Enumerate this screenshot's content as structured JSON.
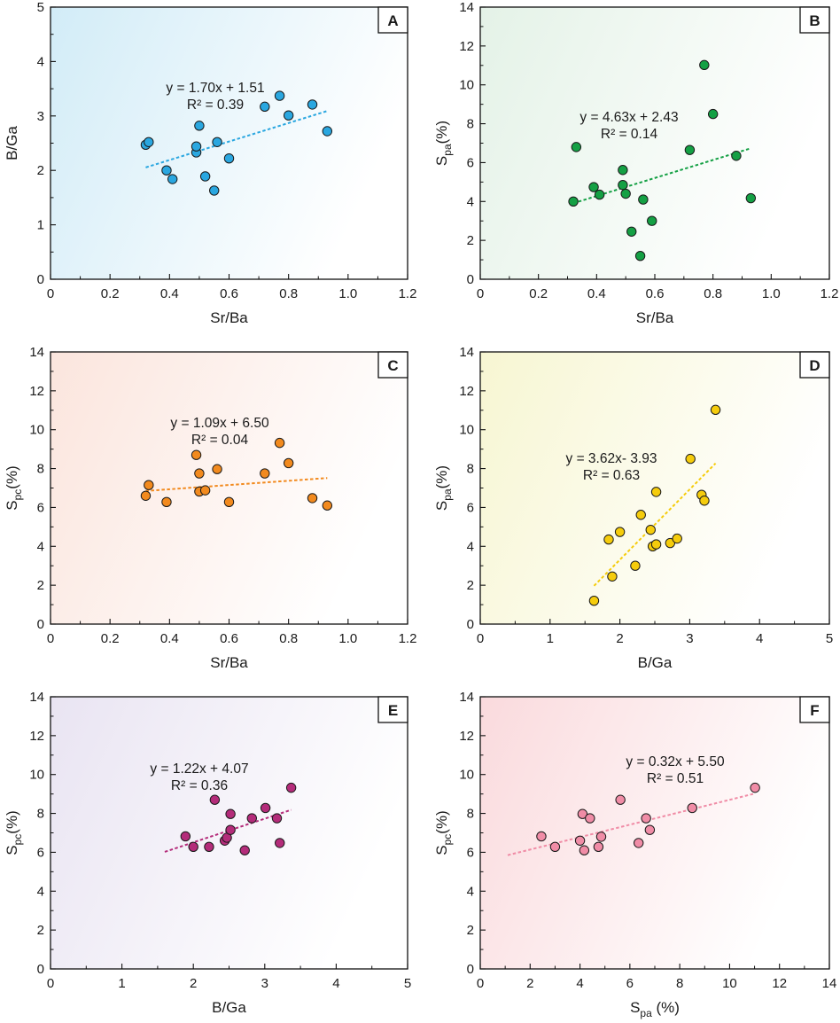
{
  "chart_data": [
    {
      "id": "A",
      "type": "scatter",
      "letter": "A",
      "xlabel": "Sr/Ba",
      "ylabel": "B/Ga",
      "xlim": [
        0,
        1.2
      ],
      "ylim": [
        0,
        5
      ],
      "xticks": [
        "0",
        "0.2",
        "0.4",
        "0.6",
        "0.8",
        "1.0",
        "1.2"
      ],
      "yticks": [
        "0",
        "1",
        "2",
        "3",
        "4",
        "5"
      ],
      "color": "#2aa7e0",
      "bg": "#d2ecf7",
      "equation": "y = 1.70x + 1.51",
      "r2": "R² = 0.39",
      "fit": {
        "x1": 0.32,
        "x2": 0.93,
        "slope": 1.7,
        "intercept": 1.51
      },
      "points": [
        [
          0.32,
          2.47
        ],
        [
          0.33,
          2.52
        ],
        [
          0.39,
          2.0
        ],
        [
          0.41,
          1.84
        ],
        [
          0.49,
          2.33
        ],
        [
          0.49,
          2.44
        ],
        [
          0.5,
          2.82
        ],
        [
          0.52,
          1.89
        ],
        [
          0.55,
          1.63
        ],
        [
          0.56,
          2.52
        ],
        [
          0.6,
          2.22
        ],
        [
          0.72,
          3.17
        ],
        [
          0.77,
          3.37
        ],
        [
          0.8,
          3.01
        ],
        [
          0.88,
          3.21
        ],
        [
          0.93,
          2.72
        ]
      ]
    },
    {
      "id": "B",
      "type": "scatter",
      "letter": "B",
      "xlabel": "Sr/Ba",
      "ylabel_main": "S",
      "ylabel_sub": "pa",
      "ylabel_unit": "(%)",
      "xlim": [
        0,
        1.2
      ],
      "ylim": [
        0,
        14
      ],
      "xticks": [
        "0",
        "0.2",
        "0.4",
        "0.6",
        "0.8",
        "1.0",
        "1.2"
      ],
      "yticks": [
        "0",
        "2",
        "4",
        "6",
        "8",
        "10",
        "12",
        "14"
      ],
      "color": "#14a044",
      "bg": "#e4f2e7",
      "equation": "y = 4.63x + 2.43",
      "r2": "R² = 0.14",
      "fit": {
        "x1": 0.32,
        "x2": 0.93,
        "slope": 4.63,
        "intercept": 2.43
      },
      "points": [
        [
          0.32,
          4.0
        ],
        [
          0.33,
          6.8
        ],
        [
          0.39,
          4.74
        ],
        [
          0.41,
          4.35
        ],
        [
          0.49,
          5.62
        ],
        [
          0.49,
          4.85
        ],
        [
          0.5,
          4.4
        ],
        [
          0.52,
          2.45
        ],
        [
          0.55,
          1.2
        ],
        [
          0.56,
          4.1
        ],
        [
          0.59,
          3.0
        ],
        [
          0.72,
          6.65
        ],
        [
          0.77,
          11.02
        ],
        [
          0.8,
          8.5
        ],
        [
          0.88,
          6.35
        ],
        [
          0.93,
          4.17
        ]
      ]
    },
    {
      "id": "C",
      "type": "scatter",
      "letter": "C",
      "xlabel": "Sr/Ba",
      "ylabel_main": "S",
      "ylabel_sub": "pc",
      "ylabel_unit": "(%)",
      "xlim": [
        0,
        1.2
      ],
      "ylim": [
        0,
        14
      ],
      "xticks": [
        "0",
        "0.2",
        "0.4",
        "0.6",
        "0.8",
        "1.0",
        "1.2"
      ],
      "yticks": [
        "0",
        "2",
        "4",
        "6",
        "8",
        "10",
        "12",
        "14"
      ],
      "color": "#f28a1e",
      "bg": "#fbe5dd",
      "equation": "y = 1.09x + 6.50",
      "r2": "R² = 0.04",
      "fit": {
        "x1": 0.32,
        "x2": 0.93,
        "slope": 1.09,
        "intercept": 6.5
      },
      "points": [
        [
          0.32,
          6.6
        ],
        [
          0.33,
          7.15
        ],
        [
          0.39,
          6.28
        ],
        [
          0.49,
          8.7
        ],
        [
          0.5,
          6.82
        ],
        [
          0.5,
          7.75
        ],
        [
          0.52,
          6.88
        ],
        [
          0.56,
          7.97
        ],
        [
          0.6,
          6.28
        ],
        [
          0.72,
          7.75
        ],
        [
          0.77,
          9.32
        ],
        [
          0.8,
          8.28
        ],
        [
          0.88,
          6.48
        ],
        [
          0.93,
          6.1
        ]
      ]
    },
    {
      "id": "D",
      "type": "scatter",
      "letter": "D",
      "xlabel": "B/Ga",
      "ylabel_main": "S",
      "ylabel_sub": "pa",
      "ylabel_unit": "(%)",
      "xlim": [
        0,
        5
      ],
      "ylim": [
        0,
        14
      ],
      "xticks": [
        "0",
        "1",
        "2",
        "3",
        "4",
        "5"
      ],
      "yticks": [
        "0",
        "2",
        "4",
        "6",
        "8",
        "10",
        "12",
        "14"
      ],
      "color": "#f5cc0c",
      "bg": "#f7f6d2",
      "equation": "y = 3.62x- 3.93",
      "r2": "R² = 0.63",
      "fit": {
        "x1": 1.63,
        "x2": 3.37,
        "slope": 3.62,
        "intercept": -3.93
      },
      "points": [
        [
          1.63,
          1.2
        ],
        [
          1.84,
          4.35
        ],
        [
          1.89,
          2.45
        ],
        [
          2.0,
          4.74
        ],
        [
          2.22,
          3.0
        ],
        [
          2.3,
          5.62
        ],
        [
          2.44,
          4.85
        ],
        [
          2.47,
          4.0
        ],
        [
          2.52,
          6.8
        ],
        [
          2.52,
          4.1
        ],
        [
          2.72,
          4.17
        ],
        [
          2.82,
          4.4
        ],
        [
          3.01,
          8.5
        ],
        [
          3.17,
          6.65
        ],
        [
          3.21,
          6.35
        ],
        [
          3.37,
          11.02
        ]
      ]
    },
    {
      "id": "E",
      "type": "scatter",
      "letter": "E",
      "xlabel": "B/Ga",
      "ylabel_main": "S",
      "ylabel_sub": "pc",
      "ylabel_unit": "(%)",
      "xlim": [
        0,
        5
      ],
      "ylim": [
        0,
        14
      ],
      "xticks": [
        "0",
        "1",
        "2",
        "3",
        "4",
        "5"
      ],
      "yticks": [
        "0",
        "2",
        "4",
        "6",
        "8",
        "10",
        "12",
        "14"
      ],
      "color": "#b42c7a",
      "bg": "#e9e4f2",
      "equation": "y = 1.22x + 4.07",
      "r2": "R² = 0.36",
      "fit": {
        "x1": 1.6,
        "x2": 3.37,
        "slope": 1.22,
        "intercept": 4.07
      },
      "points": [
        [
          1.89,
          6.82
        ],
        [
          2.0,
          6.28
        ],
        [
          2.22,
          6.28
        ],
        [
          2.3,
          8.7
        ],
        [
          2.44,
          6.6
        ],
        [
          2.47,
          6.75
        ],
        [
          2.52,
          7.97
        ],
        [
          2.52,
          7.15
        ],
        [
          2.72,
          6.1
        ],
        [
          2.82,
          7.75
        ],
        [
          3.01,
          8.28
        ],
        [
          3.17,
          7.75
        ],
        [
          3.21,
          6.48
        ],
        [
          3.37,
          9.32
        ]
      ]
    },
    {
      "id": "F",
      "type": "scatter",
      "letter": "F",
      "xlabel_main": "S",
      "xlabel_sub": "pa",
      "xlabel_unit": " (%)",
      "ylabel_main": "S",
      "ylabel_sub": "pc",
      "ylabel_unit": "(%)",
      "xlim": [
        0,
        14
      ],
      "ylim": [
        0,
        14
      ],
      "xticks": [
        "0",
        "2",
        "4",
        "6",
        "8",
        "10",
        "12",
        "14"
      ],
      "yticks": [
        "0",
        "2",
        "4",
        "6",
        "8",
        "10",
        "12",
        "14"
      ],
      "color": "#f08ca6",
      "bg": "#fadadd",
      "equation": "y = 0.32x + 5.50",
      "r2": "R² = 0.51",
      "fit": {
        "x1": 1.1,
        "x2": 11.0,
        "slope": 0.32,
        "intercept": 5.5
      },
      "points": [
        [
          2.45,
          6.82
        ],
        [
          3.0,
          6.28
        ],
        [
          4.0,
          6.6
        ],
        [
          4.1,
          7.97
        ],
        [
          4.17,
          6.1
        ],
        [
          4.4,
          7.75
        ],
        [
          4.74,
          6.28
        ],
        [
          4.85,
          6.8
        ],
        [
          5.62,
          8.7
        ],
        [
          6.35,
          6.48
        ],
        [
          6.65,
          7.75
        ],
        [
          6.8,
          7.15
        ],
        [
          8.5,
          8.28
        ],
        [
          11.02,
          9.32
        ]
      ]
    }
  ]
}
